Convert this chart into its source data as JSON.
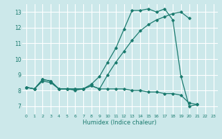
{
  "title": "",
  "xlabel": "Humidex (Indice chaleur)",
  "bg_color": "#cce8ea",
  "grid_color": "#ffffff",
  "line_color": "#1a7a6e",
  "xlim": [
    -0.5,
    23.5
  ],
  "ylim": [
    6.5,
    13.5
  ],
  "xticks": [
    0,
    1,
    2,
    3,
    4,
    5,
    6,
    7,
    8,
    9,
    10,
    11,
    12,
    13,
    14,
    15,
    16,
    17,
    18,
    19,
    20,
    21,
    22,
    23
  ],
  "yticks": [
    7,
    8,
    9,
    10,
    11,
    12,
    13
  ],
  "line1_x": [
    0,
    1,
    2,
    3,
    4,
    5,
    6,
    7,
    8,
    9,
    10,
    11,
    12,
    13,
    14,
    15,
    16,
    17,
    18,
    19,
    20,
    21
  ],
  "line1_y": [
    8.2,
    8.1,
    8.7,
    8.6,
    8.1,
    8.1,
    8.1,
    8.1,
    8.4,
    8.9,
    9.8,
    10.7,
    11.9,
    13.1,
    13.1,
    13.2,
    13.0,
    13.2,
    12.5,
    8.9,
    7.0,
    7.1
  ],
  "line2_x": [
    0,
    1,
    2,
    3,
    4,
    5,
    6,
    7,
    8,
    9,
    10,
    11,
    12,
    13,
    14,
    15,
    16,
    17,
    18,
    19,
    20
  ],
  "line2_y": [
    8.2,
    8.1,
    8.7,
    8.6,
    8.1,
    8.1,
    8.1,
    8.1,
    8.3,
    8.1,
    9.0,
    9.8,
    10.5,
    11.2,
    11.8,
    12.2,
    12.5,
    12.7,
    12.9,
    13.0,
    12.6
  ],
  "line3_x": [
    0,
    1,
    2,
    3,
    4,
    5,
    6,
    7,
    8,
    9,
    10,
    11,
    12,
    13,
    14,
    15,
    16,
    17,
    18,
    19,
    20,
    21
  ],
  "line3_y": [
    8.2,
    8.1,
    8.6,
    8.5,
    8.1,
    8.1,
    8.0,
    8.1,
    8.3,
    8.1,
    8.1,
    8.1,
    8.1,
    8.0,
    8.0,
    7.9,
    7.9,
    7.8,
    7.8,
    7.7,
    7.2,
    7.1
  ]
}
